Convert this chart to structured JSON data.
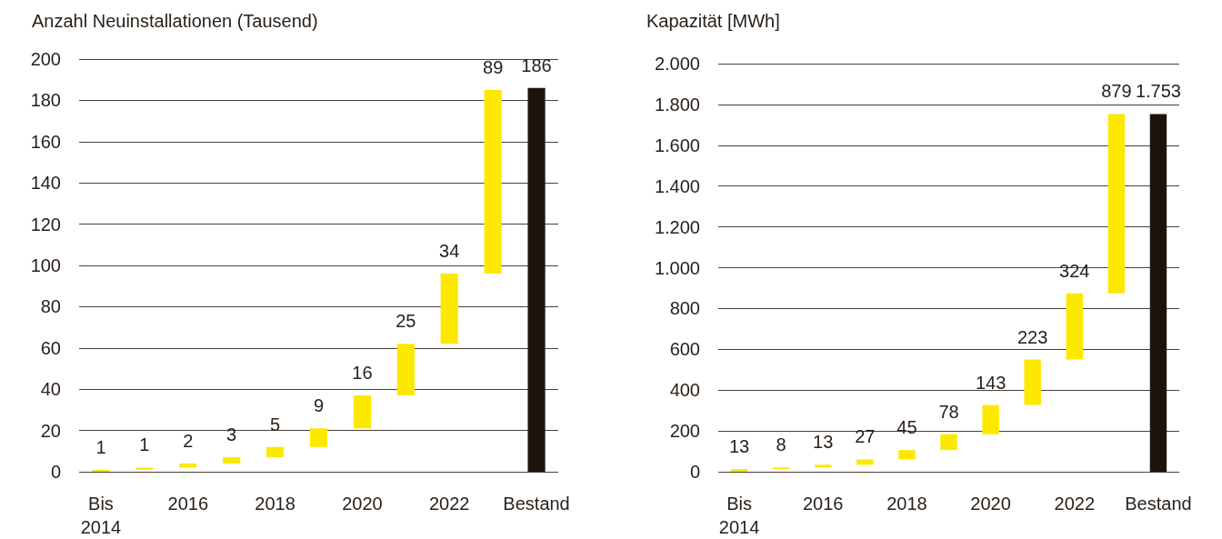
{
  "chart_data": [
    {
      "type": "bar",
      "ylabel": "Anzahl Neuinstallationen (Tausend)",
      "categories": [
        "Bis 2014",
        null,
        "2016",
        null,
        "2018",
        null,
        "2020",
        null,
        "2022",
        null,
        "Bestand"
      ],
      "values": [
        1,
        1,
        2,
        3,
        5,
        9,
        16,
        25,
        34,
        89,
        186
      ],
      "base": [
        0,
        1,
        2,
        4,
        7,
        12,
        21,
        37,
        62,
        96,
        0
      ],
      "colors": [
        "#fde800",
        "#fde800",
        "#fde800",
        "#fde800",
        "#fde800",
        "#fde800",
        "#fde800",
        "#fde800",
        "#fde800",
        "#fde800",
        "#1e130b"
      ],
      "ylim": [
        0,
        200
      ],
      "yticks": [
        0,
        20,
        40,
        60,
        80,
        100,
        120,
        140,
        160,
        180,
        200
      ],
      "grid": "y",
      "data_labels": true
    },
    {
      "type": "bar",
      "ylabel": "Kapazität [MWh]",
      "categories": [
        "Bis 2014",
        null,
        "2016",
        null,
        "2018",
        null,
        "2020",
        null,
        "2022",
        null,
        "Bestand"
      ],
      "values": [
        13,
        8,
        13,
        27,
        45,
        78,
        143,
        223,
        324,
        879,
        1753
      ],
      "base": [
        0,
        13,
        21,
        34,
        61,
        106,
        184,
        327,
        550,
        874,
        0
      ],
      "colors": [
        "#fde800",
        "#fde800",
        "#fde800",
        "#fde800",
        "#fde800",
        "#fde800",
        "#fde800",
        "#fde800",
        "#fde800",
        "#fde800",
        "#1e130b"
      ],
      "value_labels": [
        "13",
        "8",
        "13",
        "27",
        "45",
        "78",
        "143",
        "223",
        "324",
        "879",
        "1.753"
      ],
      "ylim": [
        0,
        2000
      ],
      "yticks": [
        0,
        200,
        400,
        600,
        800,
        {
          "value": 1000,
          "label": "1.000"
        },
        {
          "value": 1200,
          "label": "1.200"
        },
        {
          "value": 1400,
          "label": "1.400"
        },
        {
          "value": 1600,
          "label": "1.600"
        },
        {
          "value": 1800,
          "label": "1.800"
        },
        {
          "value": 2000,
          "label": "2.000"
        }
      ],
      "grid": "y"
    }
  ]
}
